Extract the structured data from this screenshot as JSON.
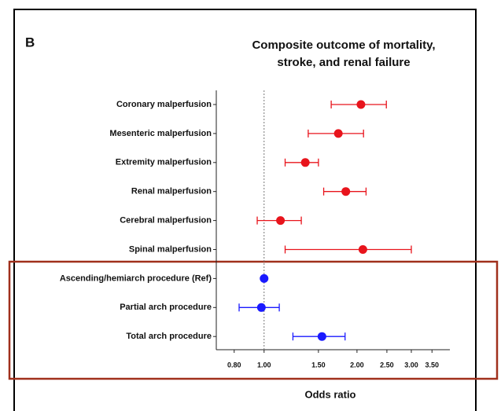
{
  "chart_data": {
    "type": "forest",
    "panel_label": "B",
    "title": [
      "Composite outcome of mortality,",
      "stroke, and renal failure"
    ],
    "xlabel": "Odds ratio",
    "log_x": true,
    "reference_line": 1,
    "categories": [
      "Coronary malperfusion",
      "Mesenteric malperfusion",
      "Extremity malperfusion",
      "Renal malperfusion",
      "Cerebral malperfusion",
      "Spinal malperfusion",
      "Ascending/hemiarch procedure (Ref)",
      "Partial arch procedure",
      "Total arch procedure"
    ],
    "values": [
      2.06,
      1.74,
      1.36,
      1.84,
      1.13,
      2.09,
      1.0,
      0.98,
      1.54
    ],
    "lower": [
      1.65,
      1.39,
      1.17,
      1.56,
      0.95,
      1.17,
      null,
      0.83,
      1.24
    ],
    "upper": [
      2.49,
      2.1,
      1.5,
      2.14,
      1.32,
      3.0,
      null,
      1.12,
      1.83
    ],
    "colors": [
      "#e8141c",
      "#e8141c",
      "#e8141c",
      "#e8141c",
      "#e8141c",
      "#e8141c",
      "#1a1aff",
      "#1a1aff",
      "#1a1aff"
    ],
    "xlim": [
      0.7,
      4
    ],
    "xticks": [
      {
        "value": 0.8,
        "label": "0.80"
      },
      {
        "value": 1.0,
        "label": "1.00"
      },
      {
        "value": 1.5,
        "label": "1.50"
      },
      {
        "value": 2.0,
        "label": "2.00"
      },
      {
        "value": 2.5,
        "label": "2.50"
      },
      {
        "value": 3.0,
        "label": "3.00"
      },
      {
        "value": 3.5,
        "label": "3.50"
      }
    ]
  }
}
